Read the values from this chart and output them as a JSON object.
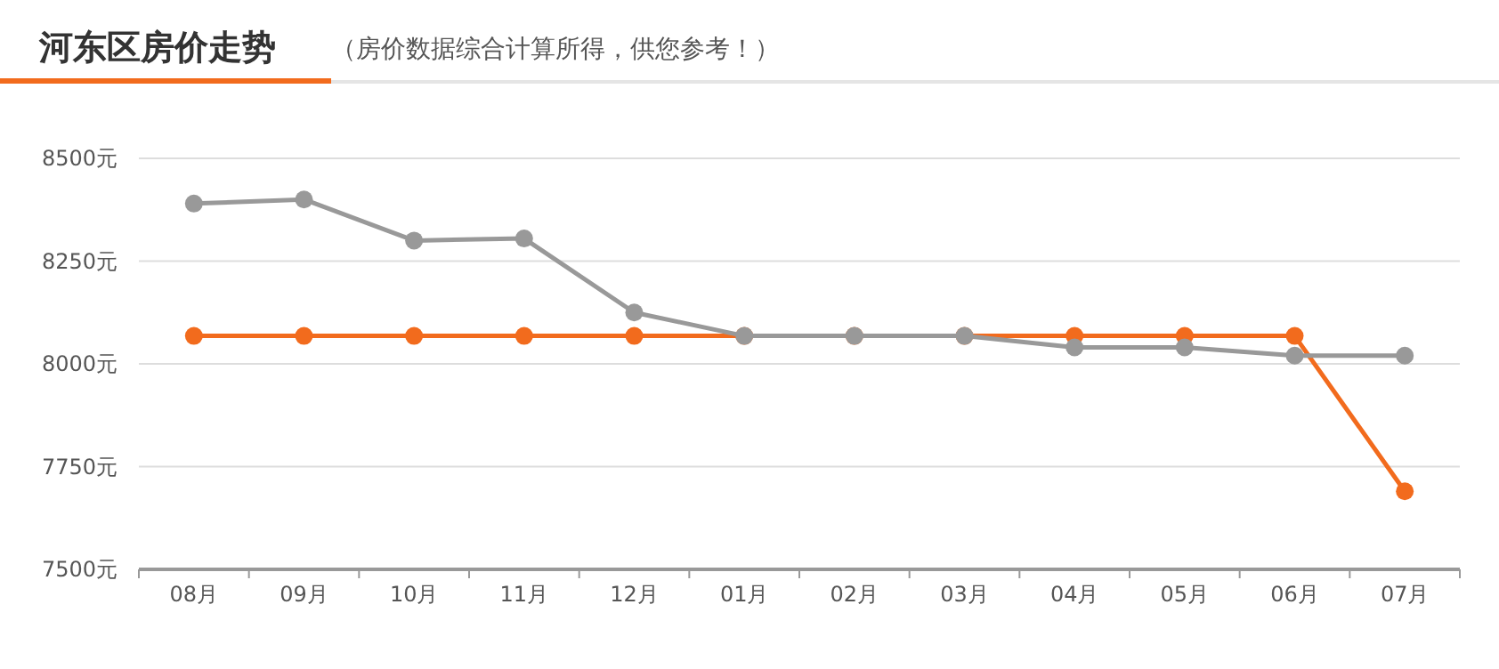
{
  "chart_data": {
    "type": "line",
    "title": "河东区房价走势",
    "subtitle": "（房价数据综合计算所得，供您参考！）",
    "categories": [
      "08月",
      "09月",
      "10月",
      "11月",
      "12月",
      "01月",
      "02月",
      "03月",
      "04月",
      "05月",
      "06月",
      "07月"
    ],
    "series": [
      {
        "color": "#999999",
        "values": [
          8390,
          8400,
          8300,
          8305,
          8125,
          8068,
          8068,
          8068,
          8040,
          8040,
          8020,
          8020
        ]
      },
      {
        "color": "#f26b1d",
        "values": [
          8068,
          8068,
          8068,
          8068,
          8068,
          8068,
          8068,
          8068,
          8068,
          8068,
          8068,
          7690
        ]
      }
    ],
    "ylim": [
      7500,
      8500
    ],
    "yticks": [
      {
        "value": 7500,
        "label": "7500元"
      },
      {
        "value": 7750,
        "label": "7750元"
      },
      {
        "value": 8000,
        "label": "8000元"
      },
      {
        "value": 8250,
        "label": "8250元"
      },
      {
        "value": 8500,
        "label": "8500元"
      }
    ],
    "grid": "y",
    "marker": "circle",
    "line_style": "solid"
  }
}
